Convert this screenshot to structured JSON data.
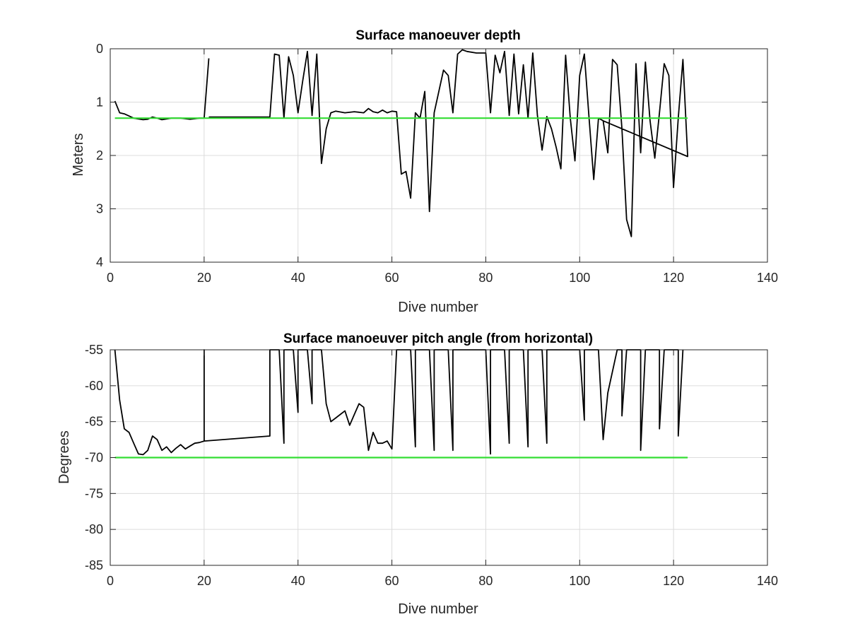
{
  "figure": {
    "background": "#ffffff",
    "grid_color": "#dcdcdc",
    "axes_color": "#262626",
    "data_color": "#000000",
    "reference_color": "#33dd33"
  },
  "chart_data": [
    {
      "type": "line",
      "title": "Surface manoeuver depth",
      "xlabel": "Dive number",
      "ylabel": "Meters",
      "xlim": [
        0,
        140
      ],
      "ylim": [
        0,
        4
      ],
      "y_reversed": true,
      "grid": true,
      "legend": "none",
      "xticks": [
        0,
        20,
        40,
        60,
        80,
        100,
        120,
        140
      ],
      "yticks": [
        0,
        1,
        2,
        3,
        4
      ],
      "series": [
        {
          "color": "#000000",
          "x": [
            1,
            2,
            3,
            5,
            7,
            8,
            9,
            10,
            11,
            13,
            15,
            17,
            19,
            20,
            21,
            null,
            21,
            28,
            34,
            35,
            36,
            37,
            38,
            39,
            40,
            41,
            42,
            43,
            44,
            45,
            46,
            47,
            48,
            50,
            52,
            54,
            55,
            56,
            57,
            58,
            59,
            60,
            61,
            62,
            63,
            64,
            65,
            66,
            67,
            68,
            69,
            71,
            72,
            73,
            74,
            75,
            76,
            78,
            80,
            81,
            82,
            83,
            84,
            85,
            86,
            87,
            88,
            89,
            90,
            91,
            92,
            93,
            94,
            95,
            96,
            97,
            98,
            99,
            100,
            101,
            102,
            103,
            104,
            105,
            106,
            107,
            108,
            109,
            110,
            111,
            112,
            113,
            114,
            115,
            116,
            117,
            118,
            119,
            120,
            121,
            122,
            123,
            105
          ],
          "y": [
            0.98,
            1.2,
            1.22,
            1.3,
            1.33,
            1.32,
            1.28,
            1.3,
            1.33,
            1.3,
            1.3,
            1.32,
            1.3,
            1.3,
            0.18,
            null,
            1.28,
            1.28,
            1.28,
            0.1,
            0.12,
            1.3,
            0.15,
            0.5,
            1.2,
            0.6,
            0.05,
            1.25,
            0.1,
            2.15,
            1.5,
            1.2,
            1.17,
            1.2,
            1.18,
            1.2,
            1.12,
            1.18,
            1.2,
            1.15,
            1.2,
            1.17,
            1.18,
            2.35,
            2.3,
            2.8,
            1.2,
            1.3,
            0.8,
            3.05,
            1.2,
            0.4,
            0.5,
            1.2,
            0.1,
            0.02,
            0.05,
            0.08,
            0.08,
            1.2,
            0.12,
            0.45,
            0.05,
            1.25,
            0.1,
            1.22,
            0.3,
            1.3,
            0.08,
            1.25,
            1.9,
            1.27,
            1.5,
            1.85,
            2.25,
            0.12,
            1.3,
            2.1,
            0.5,
            0.1,
            1.3,
            2.45,
            1.3,
            1.35,
            1.95,
            0.2,
            0.3,
            1.5,
            3.2,
            3.52,
            0.28,
            1.95,
            0.25,
            1.35,
            2.05,
            1.2,
            0.28,
            0.5,
            2.6,
            1.3,
            0.2,
            2.02,
            1.35
          ]
        },
        {
          "color": "#33dd33",
          "x": [
            1,
            123
          ],
          "y": [
            1.3,
            1.3
          ]
        }
      ]
    },
    {
      "type": "line",
      "title": "Surface manoeuver pitch angle (from horizontal)",
      "xlabel": "Dive number",
      "ylabel": "Degrees",
      "xlim": [
        0,
        140
      ],
      "ylim": [
        -85,
        -55
      ],
      "grid": true,
      "legend": "none",
      "xticks": [
        0,
        20,
        40,
        60,
        80,
        100,
        120,
        140
      ],
      "yticks": [
        -55,
        -60,
        -65,
        -70,
        -75,
        -80,
        -85
      ],
      "series": [
        {
          "color": "#000000",
          "x": [
            1,
            2,
            3,
            4,
            5,
            6,
            7,
            8,
            9,
            10,
            11,
            12,
            13,
            14,
            15,
            16,
            17,
            18,
            19,
            20,
            20,
            20,
            34,
            34,
            35,
            36,
            37,
            37,
            38,
            39,
            40,
            40,
            41,
            42,
            43,
            43,
            44,
            45,
            46,
            47,
            48,
            49,
            50,
            51,
            52,
            53,
            54,
            55,
            56,
            57,
            58,
            59,
            60,
            61,
            61,
            62,
            64,
            65,
            65,
            66,
            68,
            69,
            69,
            70,
            72,
            73,
            73,
            74,
            80,
            81,
            81,
            82,
            84,
            85,
            85,
            86,
            88,
            89,
            89,
            90,
            92,
            93,
            93,
            94,
            100,
            101,
            101,
            102,
            104,
            105,
            106,
            108,
            109,
            109,
            110,
            112,
            113,
            113,
            114,
            116,
            117,
            117,
            118,
            120,
            121,
            121,
            122
          ],
          "y": [
            -55,
            -62,
            -66,
            -66.5,
            -68,
            -69.5,
            -69.6,
            -69,
            -67,
            -67.5,
            -69,
            -68.5,
            -69.3,
            -68.7,
            -68.2,
            -68.8,
            -68.4,
            -68,
            -67.9,
            -67.7,
            -55,
            -67.7,
            -67,
            -55,
            -55,
            -55,
            -68,
            -55,
            -55,
            -55,
            -63.7,
            -55,
            -55,
            -55,
            -62.5,
            -55,
            -55,
            -55,
            -62.5,
            -65,
            -64.5,
            -64,
            -63.5,
            -65.5,
            -64,
            -62.5,
            -63,
            -69,
            -66.5,
            -68,
            -68,
            -67.7,
            -68.8,
            -55,
            -55,
            -55,
            -55,
            -68.5,
            -55,
            -55,
            -55,
            -69,
            -55,
            -55,
            -55,
            -69,
            -55,
            -55,
            -55,
            -69.5,
            -55,
            -55,
            -55,
            -68,
            -55,
            -55,
            -55,
            -68.5,
            -55,
            -55,
            -55,
            -68,
            -55,
            -55,
            -55,
            -64.8,
            -55,
            -55,
            -55,
            -67.5,
            -61,
            -55,
            -55,
            -64.2,
            -55,
            -55,
            -55,
            -69,
            -55,
            -55,
            -55,
            -66,
            -55,
            -55,
            -55,
            -67,
            -55
          ]
        },
        {
          "color": "#33dd33",
          "x": [
            1,
            123
          ],
          "y": [
            -70,
            -70
          ]
        }
      ]
    }
  ]
}
